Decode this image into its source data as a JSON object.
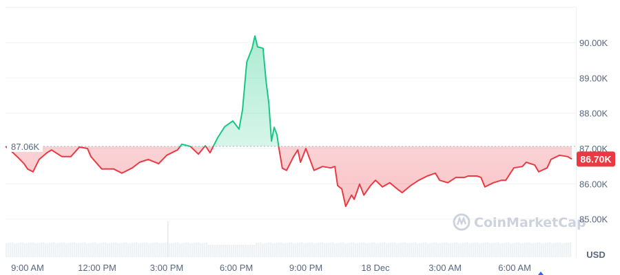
{
  "chart_data": {
    "type": "line",
    "title": "",
    "xlabel": "",
    "ylabel": "",
    "unit_label": "USD",
    "ylim": [
      84.3,
      91.0
    ],
    "grid": true,
    "y_ticks": [
      "85.00K",
      "86.00K",
      "87.00K",
      "88.00K",
      "89.00K",
      "90.00K"
    ],
    "y_tick_values": [
      85,
      86,
      87,
      88,
      89,
      90
    ],
    "x_ticks": [
      {
        "label": "9:00 AM",
        "time": "17 Dec 09:00"
      },
      {
        "label": "12:00 PM",
        "time": "17 Dec 12:00"
      },
      {
        "label": "3:00 PM",
        "time": "17 Dec 15:00"
      },
      {
        "label": "6:00 PM",
        "time": "17 Dec 18:00"
      },
      {
        "label": "9:00 PM",
        "time": "17 Dec 21:00"
      },
      {
        "label": "18 Dec",
        "time": "18 Dec 00:00"
      },
      {
        "label": "3:00 AM",
        "time": "18 Dec 03:00"
      },
      {
        "label": "6:00 AM",
        "time": "18 Dec 06:00"
      }
    ],
    "reference": {
      "label": "87.06K",
      "value": 87.06
    },
    "current": {
      "label": "86.70K",
      "value": 86.7
    },
    "colors": {
      "up": "#16c784",
      "down": "#ea3943",
      "grid": "#eff2f5",
      "text": "#58667e",
      "volume": "#eff2f5"
    },
    "watermark": "CoinMarketCap",
    "series": [
      {
        "points": [
          [
            "17 Dec 08:03",
            87.06
          ],
          [
            "17 Dec 08:15",
            86.96
          ],
          [
            "17 Dec 08:33",
            86.77
          ],
          [
            "17 Dec 08:51",
            86.57
          ],
          [
            "17 Dec 09:00",
            86.42
          ],
          [
            "17 Dec 09:14",
            86.34
          ],
          [
            "17 Dec 09:30",
            86.69
          ],
          [
            "17 Dec 09:50",
            86.88
          ],
          [
            "17 Dec 10:02",
            86.96
          ],
          [
            "17 Dec 10:29",
            86.77
          ],
          [
            "17 Dec 10:52",
            86.77
          ],
          [
            "17 Dec 11:14",
            87.04
          ],
          [
            "17 Dec 11:35",
            87.0
          ],
          [
            "17 Dec 11:44",
            86.77
          ],
          [
            "17 Dec 12:12",
            86.42
          ],
          [
            "17 Dec 12:43",
            86.42
          ],
          [
            "17 Dec 13:04",
            86.3
          ],
          [
            "17 Dec 13:31",
            86.45
          ],
          [
            "17 Dec 13:50",
            86.61
          ],
          [
            "17 Dec 14:12",
            86.69
          ],
          [
            "17 Dec 14:39",
            86.57
          ],
          [
            "17 Dec 15:00",
            86.81
          ],
          [
            "17 Dec 15:28",
            86.96
          ],
          [
            "17 Dec 15:39",
            87.12
          ],
          [
            "17 Dec 16:01",
            87.06
          ],
          [
            "17 Dec 16:22",
            86.84
          ],
          [
            "17 Dec 16:40",
            87.08
          ],
          [
            "17 Dec 16:52",
            86.88
          ],
          [
            "17 Dec 17:12",
            87.31
          ],
          [
            "17 Dec 17:30",
            87.62
          ],
          [
            "17 Dec 17:51",
            87.78
          ],
          [
            "17 Dec 18:07",
            87.55
          ],
          [
            "17 Dec 18:16",
            88.09
          ],
          [
            "17 Dec 18:27",
            89.45
          ],
          [
            "17 Dec 18:41",
            89.84
          ],
          [
            "17 Dec 18:48",
            90.19
          ],
          [
            "17 Dec 18:55",
            89.88
          ],
          [
            "17 Dec 19:09",
            89.84
          ],
          [
            "17 Dec 19:17",
            88.91
          ],
          [
            "17 Dec 19:24",
            88.29
          ],
          [
            "17 Dec 19:31",
            87.21
          ],
          [
            "17 Dec 19:38",
            87.6
          ],
          [
            "17 Dec 19:45",
            87.39
          ],
          [
            "17 Dec 19:50",
            87.02
          ],
          [
            "17 Dec 19:59",
            86.44
          ],
          [
            "17 Dec 20:10",
            86.38
          ],
          [
            "17 Dec 20:28",
            86.77
          ],
          [
            "17 Dec 20:39",
            86.96
          ],
          [
            "17 Dec 20:46",
            86.61
          ],
          [
            "17 Dec 21:00",
            87.0
          ],
          [
            "17 Dec 21:21",
            86.38
          ],
          [
            "17 Dec 21:43",
            86.49
          ],
          [
            "17 Dec 22:04",
            86.45
          ],
          [
            "17 Dec 22:15",
            86.49
          ],
          [
            "17 Dec 22:22",
            85.95
          ],
          [
            "17 Dec 22:33",
            85.85
          ],
          [
            "17 Dec 22:43",
            85.36
          ],
          [
            "17 Dec 22:58",
            85.68
          ],
          [
            "17 Dec 23:05",
            85.56
          ],
          [
            "17 Dec 23:19",
            85.99
          ],
          [
            "17 Dec 23:30",
            85.68
          ],
          [
            "17 Dec 23:47",
            85.95
          ],
          [
            "18 Dec 00:00",
            86.1
          ],
          [
            "18 Dec 00:18",
            85.91
          ],
          [
            "18 Dec 00:37",
            86.03
          ],
          [
            "18 Dec 00:59",
            85.83
          ],
          [
            "18 Dec 01:09",
            85.75
          ],
          [
            "18 Dec 01:31",
            85.95
          ],
          [
            "18 Dec 01:52",
            86.1
          ],
          [
            "18 Dec 02:14",
            86.22
          ],
          [
            "18 Dec 02:35",
            86.3
          ],
          [
            "18 Dec 02:46",
            86.1
          ],
          [
            "18 Dec 03:07",
            86.03
          ],
          [
            "18 Dec 03:28",
            86.18
          ],
          [
            "18 Dec 03:50",
            86.18
          ],
          [
            "18 Dec 04:00",
            86.22
          ],
          [
            "18 Dec 04:22",
            86.22
          ],
          [
            "18 Dec 04:33",
            86.18
          ],
          [
            "18 Dec 04:43",
            85.91
          ],
          [
            "18 Dec 05:05",
            86.03
          ],
          [
            "18 Dec 05:26",
            86.1
          ],
          [
            "18 Dec 05:37",
            86.1
          ],
          [
            "18 Dec 05:58",
            86.45
          ],
          [
            "18 Dec 06:20",
            86.49
          ],
          [
            "18 Dec 06:30",
            86.61
          ],
          [
            "18 Dec 06:52",
            86.53
          ],
          [
            "18 Dec 07:02",
            86.34
          ],
          [
            "18 Dec 07:24",
            86.45
          ],
          [
            "18 Dec 07:34",
            86.69
          ],
          [
            "18 Dec 07:56",
            86.81
          ],
          [
            "18 Dec 08:17",
            86.77
          ],
          [
            "18 Dec 08:28",
            86.7
          ]
        ]
      }
    ]
  }
}
